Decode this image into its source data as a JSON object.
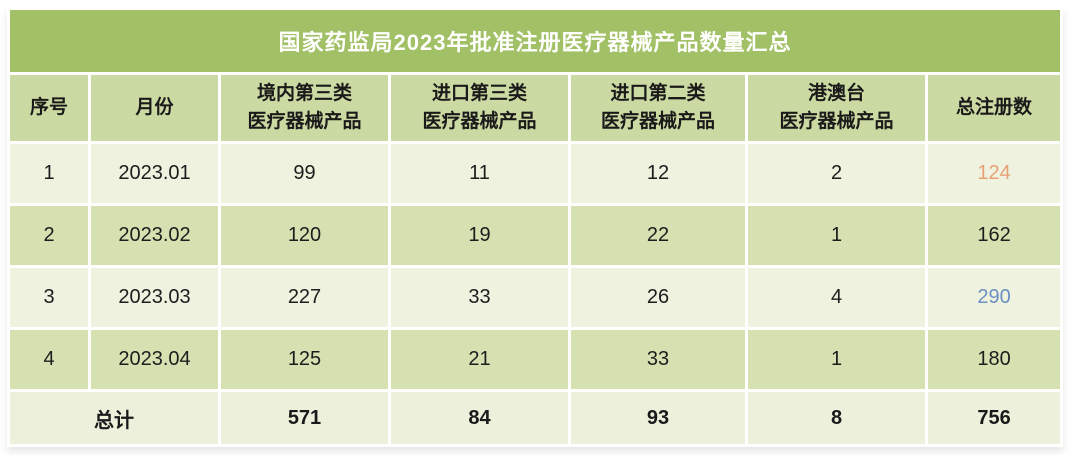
{
  "title": "国家药监局2023年批准注册医疗器械产品数量汇总",
  "columns": [
    {
      "key": "seq",
      "lines": [
        "序号"
      ]
    },
    {
      "key": "month",
      "lines": [
        "月份"
      ]
    },
    {
      "key": "domestic_class3",
      "lines": [
        "境内第三类",
        "医疗器械产品"
      ]
    },
    {
      "key": "import_class3",
      "lines": [
        "进口第三类",
        "医疗器械产品"
      ]
    },
    {
      "key": "import_class2",
      "lines": [
        "进口第二类",
        "医疗器械产品"
      ]
    },
    {
      "key": "hmt",
      "lines": [
        "港澳台",
        "医疗器械产品"
      ]
    },
    {
      "key": "total",
      "lines": [
        "总注册数"
      ]
    }
  ],
  "rows": [
    {
      "seq": "1",
      "month": "2023.01",
      "domestic_class3": "99",
      "import_class3": "11",
      "import_class2": "12",
      "hmt": "2",
      "total": "124",
      "total_color": "#e8a176"
    },
    {
      "seq": "2",
      "month": "2023.02",
      "domestic_class3": "120",
      "import_class3": "19",
      "import_class2": "22",
      "hmt": "1",
      "total": "162",
      "total_color": ""
    },
    {
      "seq": "3",
      "month": "2023.03",
      "domestic_class3": "227",
      "import_class3": "33",
      "import_class2": "26",
      "hmt": "4",
      "total": "290",
      "total_color": "#6c8fc1"
    },
    {
      "seq": "4",
      "month": "2023.04",
      "domestic_class3": "125",
      "import_class3": "21",
      "import_class2": "33",
      "hmt": "1",
      "total": "180",
      "total_color": ""
    }
  ],
  "total_row": {
    "label": "总计",
    "domestic_class3": "571",
    "import_class3": "84",
    "import_class2": "93",
    "hmt": "8",
    "total": "756"
  },
  "colors": {
    "title_bar": "#a2c065",
    "title_text": "#ffffff",
    "header_bg": "#cbdaa2",
    "row_light": "#eef2df",
    "row_dark": "#d6e1b2",
    "total_row_bg": "#edf1dc",
    "body_text": "#1d1d1d",
    "accent_orange": "#e8a176",
    "accent_blue": "#6c8fc1"
  },
  "chart_data": {
    "type": "table",
    "title": "国家药监局2023年批准注册医疗器械产品数量汇总",
    "columns": [
      "序号",
      "月份",
      "境内第三类医疗器械产品",
      "进口第三类医疗器械产品",
      "进口第二类医疗器械产品",
      "港澳台医疗器械产品",
      "总注册数"
    ],
    "rows": [
      [
        1,
        "2023.01",
        99,
        11,
        12,
        2,
        124
      ],
      [
        2,
        "2023.02",
        120,
        19,
        22,
        1,
        162
      ],
      [
        3,
        "2023.03",
        227,
        33,
        26,
        4,
        290
      ],
      [
        4,
        "2023.04",
        125,
        21,
        33,
        1,
        180
      ]
    ],
    "totals": {
      "label": "总计",
      "domestic_class3": 571,
      "import_class3": 84,
      "import_class2": 93,
      "hmt": 8,
      "total": 756
    },
    "highlighted_cells": [
      {
        "row": "2023.01",
        "column": "总注册数",
        "value": 124,
        "color": "#e8a176"
      },
      {
        "row": "2023.03",
        "column": "总注册数",
        "value": 290,
        "color": "#6c8fc1"
      }
    ]
  }
}
